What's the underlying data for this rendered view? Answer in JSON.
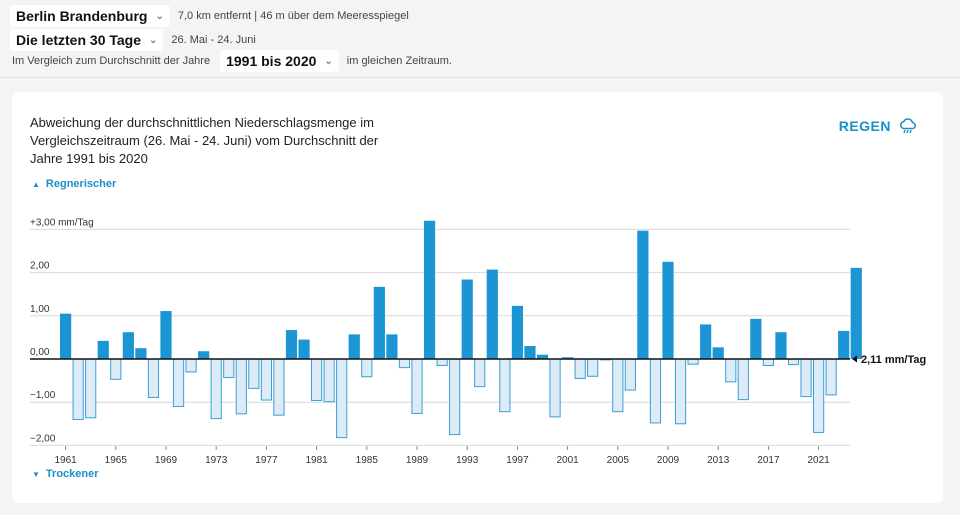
{
  "header": {
    "location": "Berlin Brandenburg",
    "distance": "7,0 km entfernt | 46 m über dem Meeresspiegel",
    "period": "Die letzten 30 Tage",
    "period_dates": "26. Mai - 24. Juni",
    "compare_prefix": "Im Vergleich zum Durchschnitt der Jahre",
    "compare_range": "1991 bis 2020",
    "compare_suffix": "im gleichen Zeitraum."
  },
  "card": {
    "title": "Abweichung der durchschnittlichen Niederschlagsmenge im Vergleichszeitraum (26. Mai - 24. Juni) vom Durchschnitt der Jahre 1991 bis 2020",
    "type_label": "REGEN",
    "wetter_hint": "Regnerischer",
    "drier_hint": "Trockener"
  },
  "colors": {
    "accent": "#1a8fc9",
    "positive": "#1c95d4",
    "negative_fill": "#dcebf6",
    "negative_stroke": "#3a9fd6"
  },
  "chart_data": {
    "type": "bar",
    "unit": "mm/Tag",
    "ylim": [
      -2.0,
      3.0
    ],
    "y_ticks": [
      {
        "v": 3,
        "label": "+3,00 mm/Tag"
      },
      {
        "v": 2,
        "label": "2,00"
      },
      {
        "v": 1,
        "label": "1,00"
      },
      {
        "v": 0,
        "label": "0,00"
      },
      {
        "v": -1,
        "label": "−1,00"
      },
      {
        "v": -2,
        "label": "−2,00"
      }
    ],
    "x_ticks": [
      "1961",
      "1965",
      "1969",
      "1973",
      "1977",
      "1981",
      "1985",
      "1989",
      "1993",
      "1997",
      "2001",
      "2005",
      "2009",
      "2013",
      "2017",
      "2021"
    ],
    "years": [
      1961,
      1962,
      1963,
      1964,
      1965,
      1966,
      1967,
      1968,
      1969,
      1970,
      1971,
      1972,
      1973,
      1974,
      1975,
      1976,
      1977,
      1978,
      1979,
      1980,
      1981,
      1982,
      1983,
      1984,
      1985,
      1986,
      1987,
      1988,
      1989,
      1990,
      1991,
      1992,
      1993,
      1994,
      1995,
      1996,
      1997,
      1998,
      1999,
      2000,
      2001,
      2002,
      2003,
      2004,
      2005,
      2006,
      2007,
      2008,
      2009,
      2010,
      2011,
      2012,
      2013,
      2014,
      2015,
      2016,
      2017,
      2018,
      2019,
      2020,
      2021,
      2022,
      2023,
      2024
    ],
    "values": [
      1.05,
      -1.4,
      -1.36,
      0.42,
      -0.47,
      0.62,
      0.25,
      -0.89,
      1.11,
      -1.1,
      -0.3,
      0.18,
      -1.38,
      -0.43,
      -1.27,
      -0.68,
      -0.95,
      -1.3,
      0.67,
      0.45,
      -0.96,
      -0.99,
      -1.82,
      0.57,
      -0.41,
      1.67,
      0.57,
      -0.2,
      -1.26,
      3.2,
      -0.15,
      -1.75,
      1.84,
      -0.64,
      2.07,
      -1.22,
      1.23,
      0.3,
      0.1,
      -1.34,
      0.04,
      -0.45,
      -0.4,
      -0.02,
      -1.22,
      -0.72,
      2.97,
      -1.48,
      2.25,
      -1.5,
      -0.12,
      0.8,
      0.27,
      -0.53,
      -0.94,
      0.93,
      -0.15,
      0.62,
      -0.13,
      -0.87,
      -1.7,
      -0.83,
      0.65,
      2.11
    ],
    "current_label": "2,11 mm/Tag"
  }
}
